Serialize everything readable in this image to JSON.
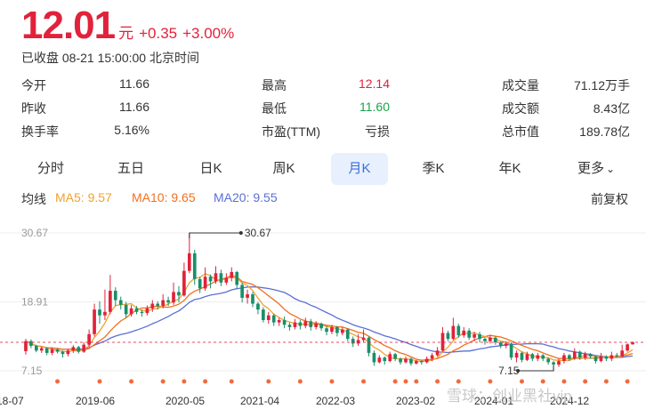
{
  "quote": {
    "price": "12.01",
    "unit": "元",
    "change": "+0.35",
    "change_pct": "+3.00%",
    "status": "已收盘 08-21 15:00:00 北京时间"
  },
  "stats": [
    [
      {
        "label": "今开",
        "value": "11.66"
      },
      {
        "label": "最高",
        "value": "12.14",
        "color": "#e1223a"
      },
      {
        "label": "成交量",
        "value": "71.12万手"
      }
    ],
    [
      {
        "label": "昨收",
        "value": "11.66"
      },
      {
        "label": "最低",
        "value": "11.60",
        "color": "#1aa34a"
      },
      {
        "label": "成交额",
        "value": "8.43亿"
      }
    ],
    [
      {
        "label": "换手率",
        "value": "5.16%"
      },
      {
        "label": "市盈(TTM)",
        "value": "亏损"
      },
      {
        "label": "总市值",
        "value": "189.78亿"
      }
    ]
  ],
  "tabs": [
    "分时",
    "五日",
    "日K",
    "周K",
    "月K",
    "季K",
    "年K",
    "更多"
  ],
  "active_tab": "月K",
  "indicators": {
    "label": "均线",
    "ma5": "MA5: 9.57",
    "ma10": "MA10: 9.65",
    "ma20": "MA20: 9.55",
    "adjust": "前复权"
  },
  "colors": {
    "up": "#e1223a",
    "down": "#1a8f6a",
    "ma5": "#f0a232",
    "ma10": "#f07020",
    "ma20": "#5b6fd6"
  },
  "watermark": "雪球：创业黑社vip",
  "chart_data": {
    "type": "candlestick",
    "y_ticks": [
      "30.67",
      "18.91",
      "7.15"
    ],
    "ylim": [
      7.15,
      30.67
    ],
    "x_labels": [
      "18-07",
      "2019-06",
      "2020-05",
      "2021-04",
      "2022-03",
      "2023-02",
      "2024-01",
      "2024-12"
    ],
    "max_annotation": {
      "label": "30.67",
      "value": 30.67
    },
    "min_annotation": {
      "label": "7.15",
      "value": 7.15
    },
    "last_close": 12.01,
    "candles": [
      [
        10.5,
        12.2,
        9.9,
        12.6
      ],
      [
        12.2,
        11.4,
        11.0,
        12.5
      ],
      [
        11.4,
        10.6,
        10.3,
        11.6
      ],
      [
        10.6,
        11.0,
        10.2,
        11.3
      ],
      [
        11.0,
        10.2,
        9.8,
        11.2
      ],
      [
        10.2,
        10.8,
        9.8,
        11.1
      ],
      [
        10.8,
        10.4,
        10.1,
        11.0
      ],
      [
        10.4,
        10.0,
        9.4,
        10.6
      ],
      [
        10.0,
        10.6,
        9.6,
        10.9
      ],
      [
        10.6,
        11.2,
        10.2,
        11.5
      ],
      [
        11.2,
        10.4,
        10.1,
        11.4
      ],
      [
        10.4,
        11.6,
        10.2,
        12.0
      ],
      [
        11.6,
        13.4,
        11.2,
        14.2
      ],
      [
        13.4,
        17.6,
        13.0,
        18.6
      ],
      [
        17.6,
        16.6,
        15.2,
        19.0
      ],
      [
        16.6,
        17.2,
        15.8,
        21.0
      ],
      [
        17.2,
        20.8,
        16.8,
        23.5
      ],
      [
        20.8,
        19.2,
        18.2,
        21.4
      ],
      [
        19.2,
        18.4,
        17.6,
        19.8
      ],
      [
        18.4,
        16.8,
        16.2,
        18.9
      ],
      [
        16.8,
        17.8,
        16.4,
        18.4
      ],
      [
        17.8,
        17.2,
        16.8,
        18.2
      ],
      [
        17.2,
        17.0,
        16.4,
        17.6
      ],
      [
        17.0,
        17.8,
        16.6,
        18.3
      ],
      [
        17.8,
        18.6,
        17.2,
        19.2
      ],
      [
        18.6,
        18.2,
        17.6,
        19.0
      ],
      [
        18.2,
        19.2,
        17.8,
        20.2
      ],
      [
        19.2,
        18.8,
        18.2,
        19.8
      ],
      [
        18.8,
        20.6,
        18.4,
        22.2
      ],
      [
        20.6,
        20.0,
        18.8,
        21.6
      ],
      [
        20.0,
        24.2,
        19.8,
        25.6
      ],
      [
        24.2,
        27.2,
        23.8,
        30.67
      ],
      [
        27.2,
        22.8,
        21.8,
        27.8
      ],
      [
        22.8,
        21.2,
        20.4,
        23.2
      ],
      [
        21.2,
        23.2,
        20.8,
        24.8
      ],
      [
        23.2,
        22.4,
        21.2,
        23.6
      ],
      [
        22.4,
        23.8,
        22.0,
        25.0
      ],
      [
        23.8,
        22.2,
        21.6,
        24.4
      ],
      [
        22.2,
        23.0,
        21.8,
        23.8
      ],
      [
        23.0,
        24.0,
        22.4,
        24.8
      ],
      [
        24.0,
        21.8,
        21.2,
        24.2
      ],
      [
        21.8,
        19.6,
        18.8,
        22.2
      ],
      [
        19.6,
        20.2,
        18.6,
        21.0
      ],
      [
        20.2,
        18.6,
        18.0,
        20.6
      ],
      [
        18.6,
        17.6,
        16.8,
        18.9
      ],
      [
        17.6,
        15.8,
        15.4,
        18.0
      ],
      [
        15.8,
        16.6,
        15.2,
        17.2
      ],
      [
        16.6,
        15.4,
        14.8,
        16.9
      ],
      [
        15.4,
        15.8,
        14.8,
        16.2
      ],
      [
        15.8,
        15.0,
        14.4,
        16.4
      ],
      [
        15.0,
        14.6,
        14.0,
        15.4
      ],
      [
        14.6,
        15.4,
        14.2,
        16.0
      ],
      [
        15.4,
        14.8,
        14.2,
        15.8
      ],
      [
        14.8,
        15.6,
        14.4,
        16.2
      ],
      [
        15.6,
        14.6,
        14.0,
        16.0
      ],
      [
        14.6,
        15.2,
        14.2,
        15.6
      ],
      [
        15.2,
        14.4,
        14.0,
        15.4
      ],
      [
        14.4,
        13.8,
        13.2,
        14.8
      ],
      [
        13.8,
        14.6,
        13.4,
        15.0
      ],
      [
        14.6,
        13.6,
        13.0,
        14.8
      ],
      [
        13.6,
        14.2,
        13.2,
        14.6
      ],
      [
        14.2,
        12.6,
        12.2,
        14.4
      ],
      [
        12.6,
        11.8,
        11.2,
        13.0
      ],
      [
        11.8,
        12.4,
        11.4,
        13.4
      ],
      [
        12.4,
        12.8,
        12.0,
        14.2
      ],
      [
        12.8,
        10.2,
        9.6,
        13.0
      ],
      [
        10.2,
        8.6,
        8.0,
        10.6
      ],
      [
        8.6,
        9.4,
        8.4,
        9.8
      ],
      [
        9.4,
        8.8,
        8.2,
        9.6
      ],
      [
        8.8,
        10.0,
        8.6,
        10.4
      ],
      [
        10.0,
        9.2,
        8.8,
        10.2
      ],
      [
        9.2,
        8.6,
        8.2,
        9.4
      ],
      [
        8.6,
        9.2,
        8.4,
        9.6
      ],
      [
        9.2,
        8.4,
        8.0,
        9.4
      ],
      [
        8.4,
        8.8,
        8.2,
        9.0
      ],
      [
        8.8,
        8.6,
        8.2,
        9.0
      ],
      [
        8.6,
        9.2,
        8.4,
        9.6
      ],
      [
        9.2,
        9.8,
        8.8,
        10.2
      ],
      [
        9.8,
        10.6,
        9.6,
        11.2
      ],
      [
        10.6,
        13.6,
        10.4,
        14.6
      ],
      [
        13.6,
        12.6,
        12.2,
        14.0
      ],
      [
        12.6,
        14.8,
        12.4,
        16.2
      ],
      [
        14.8,
        13.2,
        12.8,
        15.2
      ],
      [
        13.2,
        14.0,
        12.8,
        14.6
      ],
      [
        14.0,
        12.8,
        12.4,
        14.4
      ],
      [
        12.8,
        13.4,
        12.2,
        13.8
      ],
      [
        13.4,
        12.6,
        12.0,
        13.8
      ],
      [
        12.6,
        12.2,
        11.6,
        12.9
      ],
      [
        12.2,
        12.8,
        11.8,
        13.2
      ],
      [
        12.8,
        12.0,
        11.6,
        13.0
      ],
      [
        12.0,
        11.4,
        11.0,
        12.2
      ],
      [
        11.4,
        11.8,
        11.0,
        12.2
      ],
      [
        11.8,
        9.4,
        9.0,
        12.0
      ],
      [
        9.4,
        10.2,
        8.6,
        10.6
      ],
      [
        10.2,
        9.0,
        8.6,
        10.4
      ],
      [
        9.0,
        10.0,
        8.8,
        10.4
      ],
      [
        10.0,
        9.2,
        8.8,
        10.2
      ],
      [
        9.2,
        9.8,
        8.8,
        10.2
      ],
      [
        9.8,
        9.2,
        8.8,
        10.0
      ],
      [
        9.2,
        8.6,
        8.2,
        9.4
      ],
      [
        8.6,
        8.2,
        7.15,
        8.8
      ],
      [
        8.2,
        8.8,
        7.8,
        9.2
      ],
      [
        8.8,
        9.8,
        8.4,
        10.2
      ],
      [
        9.8,
        9.2,
        8.8,
        10.0
      ],
      [
        9.2,
        10.4,
        9.0,
        11.0
      ],
      [
        10.4,
        9.4,
        9.0,
        10.6
      ],
      [
        9.4,
        10.0,
        9.0,
        10.4
      ],
      [
        10.0,
        9.6,
        9.2,
        10.2
      ],
      [
        9.6,
        8.8,
        8.4,
        9.8
      ],
      [
        8.8,
        9.6,
        8.6,
        10.2
      ],
      [
        9.6,
        9.2,
        8.8,
        9.8
      ],
      [
        9.2,
        9.8,
        8.8,
        10.4
      ],
      [
        9.8,
        9.6,
        9.4,
        10.2
      ],
      [
        9.6,
        10.6,
        9.4,
        11.6
      ],
      [
        10.6,
        11.66,
        10.4,
        11.8
      ],
      [
        11.66,
        12.01,
        11.6,
        12.14
      ]
    ]
  }
}
